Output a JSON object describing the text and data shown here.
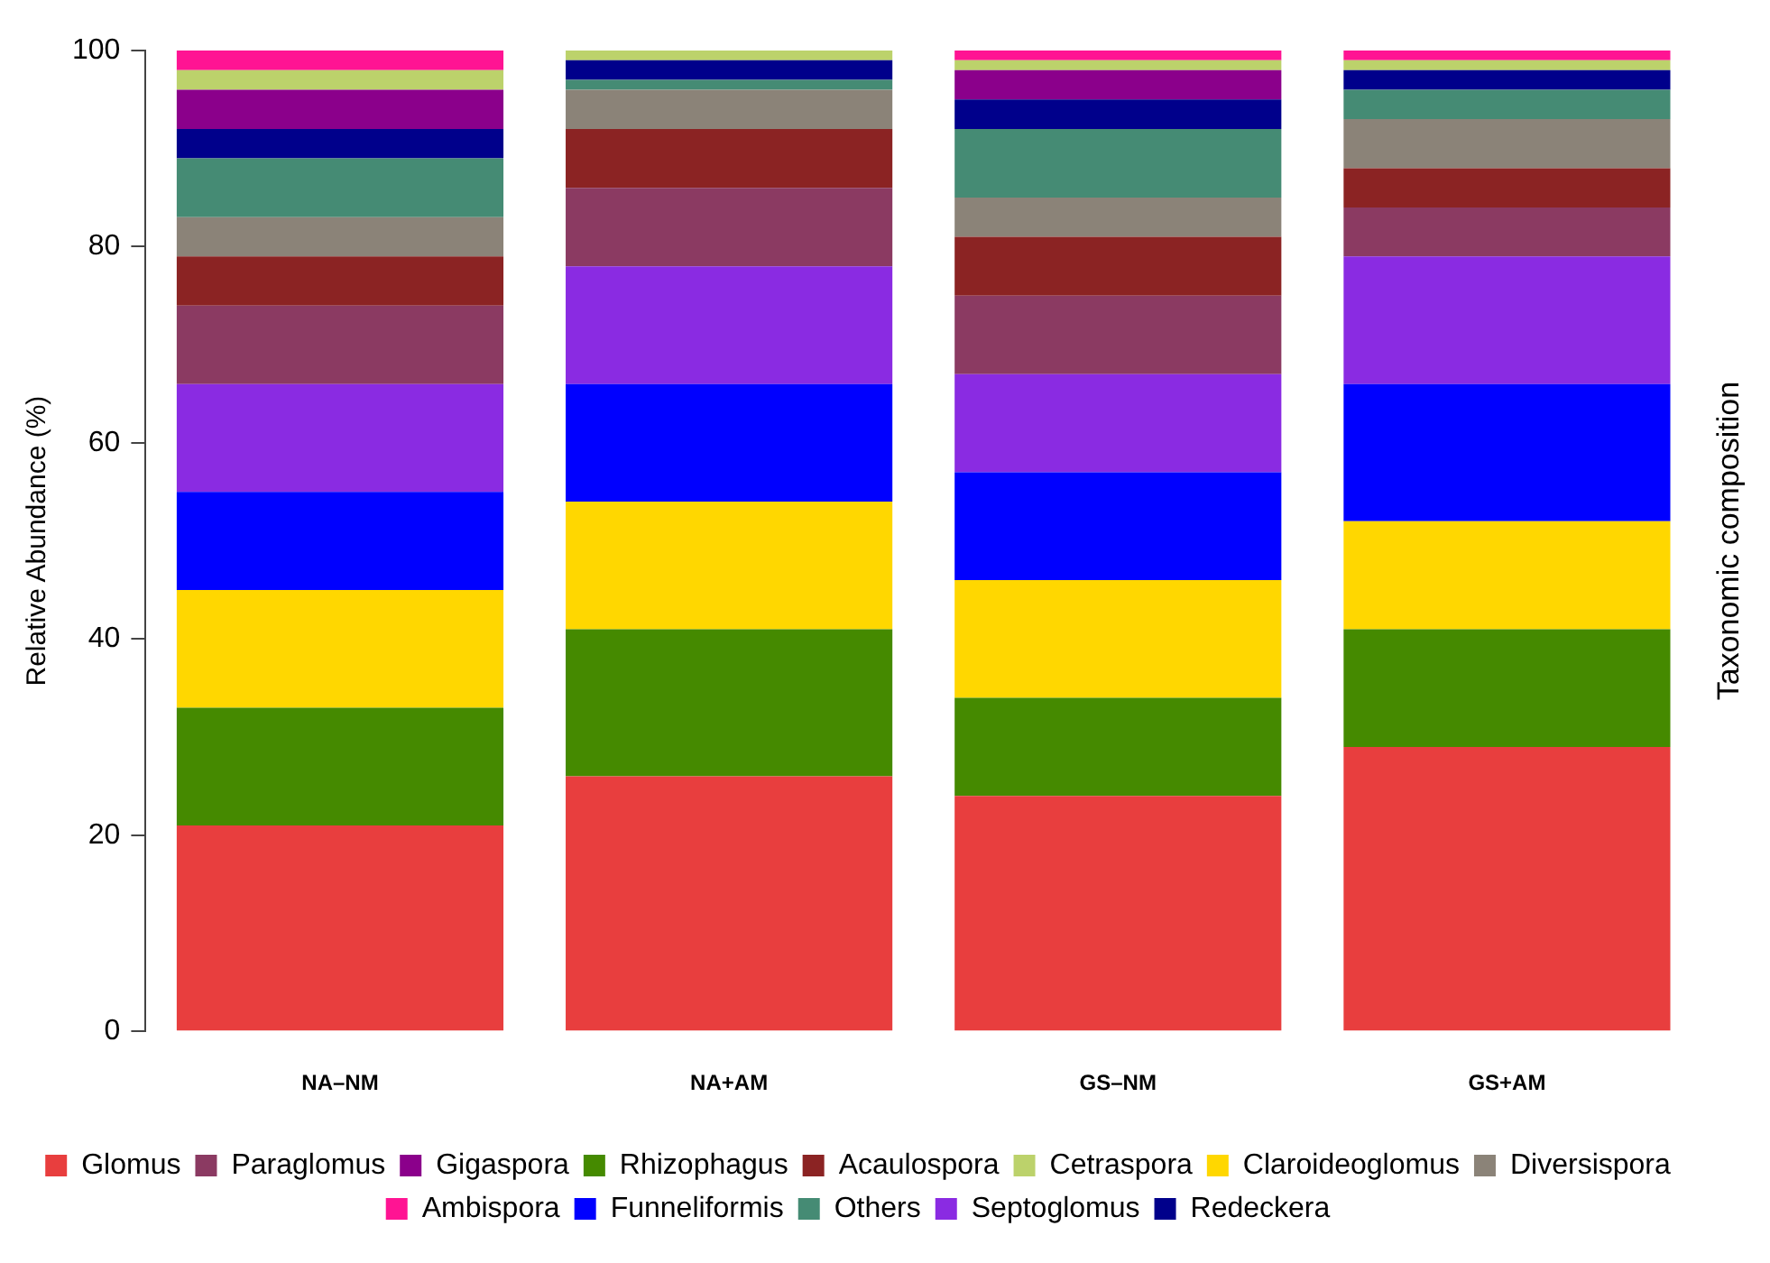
{
  "chart_data": {
    "type": "bar",
    "stacked": true,
    "ylabel": "Relative Abundance (%)",
    "annotations": [
      "Taxonomic composition"
    ],
    "categories": [
      "NA–NM",
      "NA+AM",
      "GS–NM",
      "GS+AM"
    ],
    "ylim": [
      0,
      100
    ],
    "yticks": [
      0,
      20,
      40,
      60,
      80,
      100
    ],
    "grid": false,
    "legend": "bottom",
    "series": [
      {
        "name": "Glomus",
        "color": "#e83e3e",
        "values": [
          21,
          26,
          24,
          29
        ]
      },
      {
        "name": "Rhizophagus",
        "color": "#458a00",
        "values": [
          12,
          15,
          10,
          12
        ]
      },
      {
        "name": "Claroideoglomus",
        "color": "#ffd700",
        "values": [
          12,
          13,
          12,
          11
        ]
      },
      {
        "name": "Funneliformis",
        "color": "#0000ff",
        "values": [
          10,
          12,
          11,
          14
        ]
      },
      {
        "name": "Septoglomus",
        "color": "#8a2be2",
        "values": [
          11,
          12,
          10,
          13
        ]
      },
      {
        "name": "Paraglomus",
        "color": "#8b3a62",
        "values": [
          8,
          8,
          8,
          5
        ]
      },
      {
        "name": "Acaulospora",
        "color": "#8b2323",
        "values": [
          5,
          6,
          6,
          4
        ]
      },
      {
        "name": "Diversispora",
        "color": "#8b8378",
        "values": [
          4,
          4,
          4,
          5
        ]
      },
      {
        "name": "Others",
        "color": "#458b74",
        "values": [
          6,
          1,
          7,
          3
        ]
      },
      {
        "name": "Redeckera",
        "color": "#00008b",
        "values": [
          3,
          2,
          3,
          2
        ]
      },
      {
        "name": "Gigaspora",
        "color": "#8b008b",
        "values": [
          4,
          0,
          3,
          0
        ]
      },
      {
        "name": "Cetraspora",
        "color": "#bcd26b",
        "values": [
          2,
          1,
          1,
          1
        ]
      },
      {
        "name": "Ambispora",
        "color": "#ff1493",
        "values": [
          2,
          0,
          1,
          1
        ]
      }
    ]
  }
}
